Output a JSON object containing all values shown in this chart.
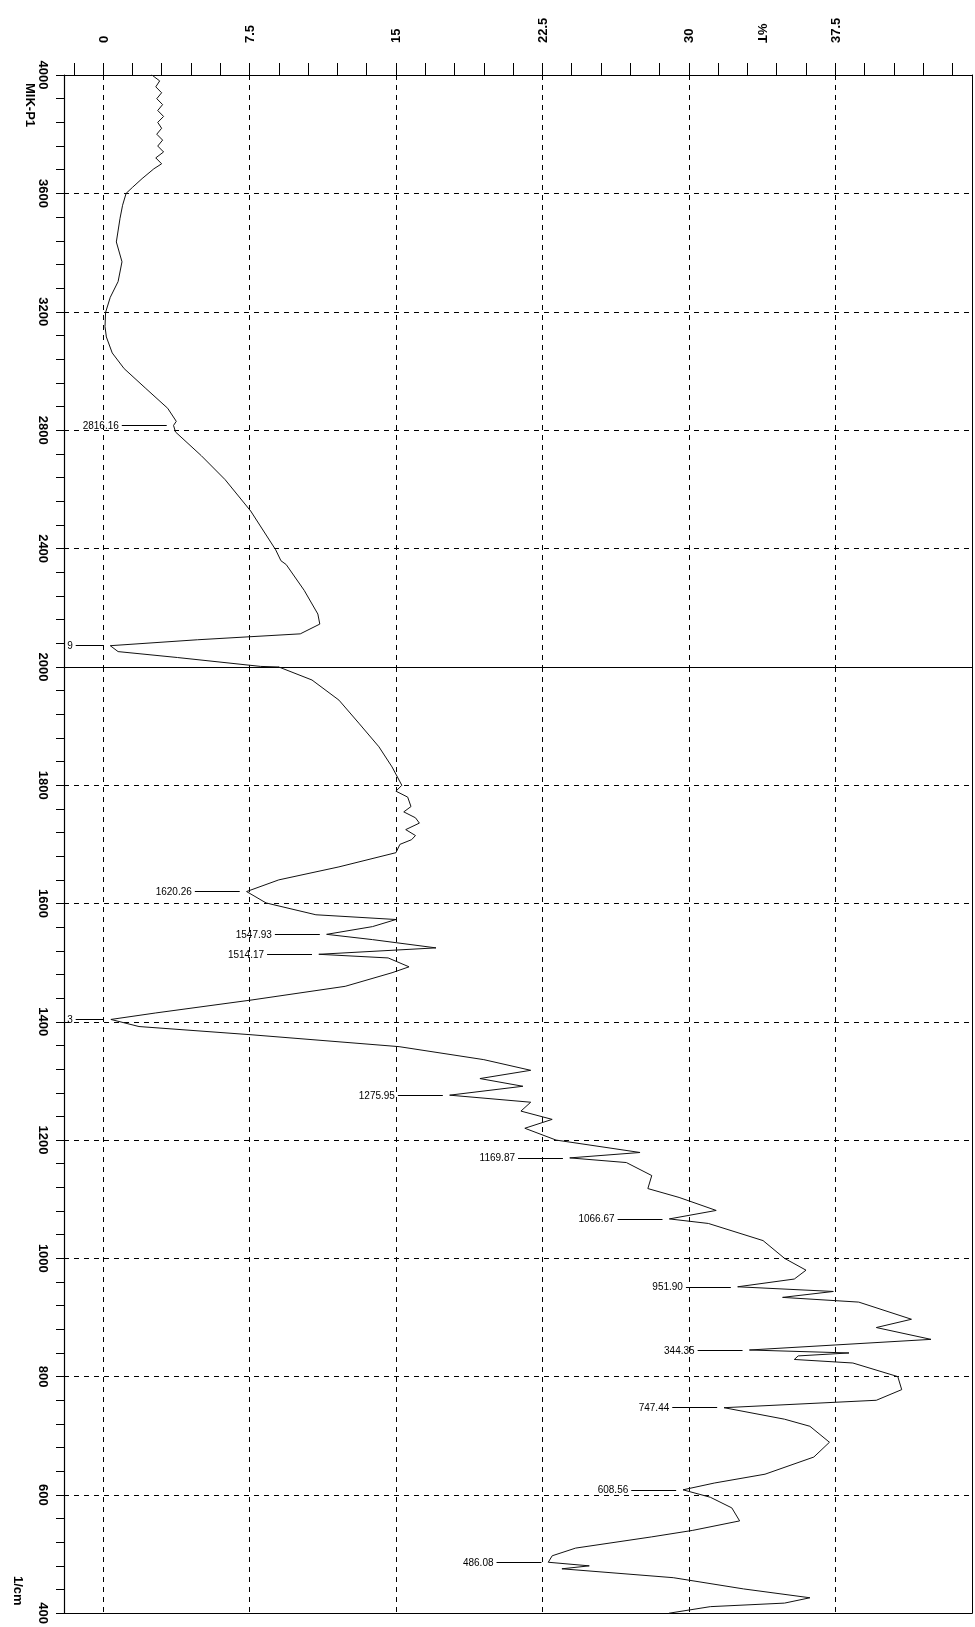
{
  "chart_data": [
    {
      "type": "line",
      "title": "MIK-P1",
      "color": "#111111",
      "grid": true,
      "marker": "none",
      "line_style": "solid",
      "values": [
        4000,
        3980,
        3960,
        3940,
        3920,
        3900,
        3880,
        3860,
        3840,
        3820,
        3800,
        3780,
        3760,
        3740,
        3720,
        3700,
        3683,
        3650,
        3620,
        3600,
        3560,
        3516,
        3436,
        3369,
        3302,
        3249,
        3198,
        3150,
        3115,
        3061,
        3008,
        2941,
        2874,
        2830,
        2816.16,
        2794,
        2714,
        2633,
        2527,
        2396,
        2359,
        2346,
        2259,
        2179,
        2145,
        2112,
        2092,
        2072,
        2052,
        2032,
        2002,
        2000
      ],
      "x": [
        2.5,
        2.9,
        2.7,
        3.0,
        2.75,
        3.05,
        2.8,
        3.1,
        2.8,
        3.0,
        2.75,
        3.05,
        2.8,
        3.1,
        2.7,
        3.0,
        2.6,
        2.0,
        1.5,
        1.18,
        1.0,
        0.87,
        0.68,
        0.97,
        0.77,
        0.37,
        0.13,
        0.1,
        0.17,
        0.47,
        1.08,
        2.19,
        3.31,
        3.75,
        3.61,
        3.71,
        5.03,
        6.25,
        7.56,
        8.84,
        9.11,
        9.38,
        10.3,
        11.0,
        11.1,
        10.1,
        4.83,
        0.37,
        0.77,
        3.81,
        8.07,
        9.0
      ],
      "ylim": [
        2000,
        4000
      ],
      "xlim": [
        -2,
        44.5
      ],
      "yticks": [
        4000,
        {
          "value": 3920,
          "label": null
        },
        {
          "value": 3840,
          "label": null
        },
        {
          "value": 3760,
          "label": null
        },
        {
          "value": 3680,
          "label": null
        },
        3600,
        {
          "value": 3520,
          "label": null
        },
        {
          "value": 3440,
          "label": null
        },
        {
          "value": 3360,
          "label": null
        },
        {
          "value": 3280,
          "label": null
        },
        3200,
        {
          "value": 3120,
          "label": null
        },
        {
          "value": 3040,
          "label": null
        },
        {
          "value": 2960,
          "label": null
        },
        {
          "value": 2880,
          "label": null
        },
        2800,
        {
          "value": 2720,
          "label": null
        },
        {
          "value": 2640,
          "label": null
        },
        {
          "value": 2560,
          "label": null
        },
        {
          "value": 2480,
          "label": null
        },
        2400,
        {
          "value": 2320,
          "label": null
        },
        {
          "value": 2240,
          "label": null
        },
        {
          "value": 2160,
          "label": null
        },
        {
          "value": 2080,
          "label": null
        },
        2000
      ],
      "xticks": [
        {
          "value": -1.5,
          "label": null
        },
        0,
        {
          "value": 1.5,
          "label": null
        },
        {
          "value": 3,
          "label": null
        },
        {
          "value": 4.5,
          "label": null
        },
        {
          "value": 6,
          "label": null
        },
        7.5,
        {
          "value": 9,
          "label": null
        },
        {
          "value": 10.5,
          "label": null
        },
        {
          "value": 12,
          "label": null
        },
        {
          "value": 13.5,
          "label": null
        },
        15,
        {
          "value": 16.5,
          "label": null
        },
        {
          "value": 18,
          "label": null
        },
        {
          "value": 19.5,
          "label": null
        },
        {
          "value": 21,
          "label": null
        },
        22.5,
        {
          "value": 24,
          "label": null
        },
        {
          "value": 25.5,
          "label": null
        },
        {
          "value": 27,
          "label": null
        },
        {
          "value": 28.5,
          "label": null
        },
        30,
        {
          "value": 31.5,
          "label": null
        },
        {
          "value": 33,
          "label": null
        },
        {
          "value": 34.5,
          "label": null
        },
        {
          "value": 36,
          "label": null
        },
        37.5,
        {
          "value": 39,
          "label": null
        },
        {
          "value": 40.5,
          "label": null
        },
        {
          "value": 42,
          "label": null
        },
        {
          "value": 43.5,
          "label": null
        }
      ],
      "annotations": [
        "%T",
        {
          "text": "2816.16",
          "x": 3.61,
          "y": 2816.16
        },
        {
          "text": "9",
          "x": 0.37,
          "y": 2072
        }
      ]
    },
    {
      "type": "line",
      "ylabel": "1/cm",
      "color": "#111111",
      "grid": true,
      "marker": "none",
      "line_style": "solid",
      "tick_labels": "y",
      "values": [
        2000,
        1978,
        1944,
        1905,
        1865,
        1831,
        1800,
        1790,
        1780,
        1764,
        1755,
        1745,
        1736,
        1725,
        1715,
        1708,
        1700,
        1686,
        1662,
        1640,
        1620.26,
        1601,
        1581,
        1573,
        1561,
        1547.93,
        1539,
        1525,
        1514.17,
        1508,
        1493,
        1483,
        1460,
        1437,
        1415,
        1404,
        1392,
        1378,
        1358,
        1336,
        1318,
        1304,
        1291,
        1275.95,
        1264,
        1249,
        1235,
        1220,
        1200,
        1179,
        1169.87,
        1162,
        1140,
        1118,
        1103,
        1081,
        1066.67,
        1059,
        1030,
        1000,
        980,
        965,
        951.9,
        944,
        934,
        926,
        897,
        883,
        863,
        845,
        840,
        835,
        829,
        823,
        800,
        778,
        760,
        747.44,
        728,
        716,
        689,
        664,
        635,
        620,
        608.56,
        596,
        578,
        556,
        540,
        529,
        510,
        497,
        486.08,
        480,
        475,
        460,
        441,
        426,
        417,
        411,
        400
      ],
      "x": [
        9.0,
        10.7,
        12.08,
        13.1,
        14.13,
        14.8,
        15.3,
        15.0,
        15.6,
        15.77,
        15.4,
        16.0,
        16.2,
        15.5,
        16.0,
        15.8,
        15.2,
        15.0,
        12.08,
        9.0,
        7.35,
        8.35,
        10.9,
        15.0,
        13.8,
        11.45,
        13.8,
        17.05,
        11.05,
        14.6,
        15.67,
        14.8,
        12.4,
        7.63,
        2.7,
        0.4,
        1.84,
        7.63,
        15.16,
        19.5,
        21.9,
        19.3,
        21.5,
        17.75,
        21.9,
        21.4,
        23.0,
        21.6,
        23.2,
        27.5,
        23.9,
        26.8,
        28.1,
        27.9,
        29.5,
        31.4,
        29.0,
        31.0,
        33.8,
        34.9,
        36.0,
        35.4,
        32.5,
        37.4,
        34.8,
        38.7,
        41.4,
        39.6,
        42.4,
        33.1,
        38.2,
        35.6,
        35.4,
        38.4,
        40.7,
        40.9,
        39.6,
        31.8,
        34.9,
        36.2,
        37.2,
        36.4,
        33.9,
        31.3,
        29.7,
        31.1,
        32.2,
        32.6,
        30.2,
        28.1,
        24.2,
        23.0,
        22.8,
        24.9,
        23.5,
        29.2,
        32.8,
        36.2,
        34.9,
        31.1,
        29.0
      ],
      "ylim": [
        400,
        2000
      ],
      "xlim": [
        -2,
        44.5
      ],
      "yticks": [
        {
          "value": 2000,
          "label": null
        },
        {
          "value": 1960,
          "label": null
        },
        {
          "value": 1920,
          "label": null
        },
        {
          "value": 1880,
          "label": null
        },
        {
          "value": 1840,
          "label": null
        },
        1800,
        {
          "value": 1760,
          "label": null
        },
        {
          "value": 1720,
          "label": null
        },
        {
          "value": 1680,
          "label": null
        },
        {
          "value": 1640,
          "label": null
        },
        1600,
        {
          "value": 1560,
          "label": null
        },
        {
          "value": 1520,
          "label": null
        },
        {
          "value": 1480,
          "label": null
        },
        {
          "value": 1440,
          "label": null
        },
        1400,
        {
          "value": 1360,
          "label": null
        },
        {
          "value": 1320,
          "label": null
        },
        {
          "value": 1280,
          "label": null
        },
        {
          "value": 1240,
          "label": null
        },
        1200,
        {
          "value": 1160,
          "label": null
        },
        {
          "value": 1120,
          "label": null
        },
        {
          "value": 1080,
          "label": null
        },
        {
          "value": 1040,
          "label": null
        },
        1000,
        {
          "value": 960,
          "label": null
        },
        {
          "value": 920,
          "label": null
        },
        {
          "value": 880,
          "label": null
        },
        {
          "value": 840,
          "label": null
        },
        800,
        {
          "value": 760,
          "label": null
        },
        {
          "value": 720,
          "label": null
        },
        {
          "value": 680,
          "label": null
        },
        {
          "value": 640,
          "label": null
        },
        600,
        {
          "value": 560,
          "label": null
        },
        {
          "value": 520,
          "label": null
        },
        {
          "value": 480,
          "label": null
        },
        {
          "value": 440,
          "label": null
        },
        400
      ],
      "xticks": [
        0,
        7.5,
        15,
        22.5,
        30,
        37.5
      ],
      "annotations": [
        {
          "text": "1620.26",
          "x": 7.35,
          "y": 1620.26
        },
        {
          "text": "1547.93",
          "x": 11.45,
          "y": 1547.93
        },
        {
          "text": "1514.17",
          "x": 11.05,
          "y": 1514.17
        },
        {
          "text": "3",
          "x": 0.4,
          "y": 1404
        },
        {
          "text": "1275.95",
          "x": 17.75,
          "y": 1275.95
        },
        {
          "text": "1169.87",
          "x": 23.9,
          "y": 1169.87
        },
        {
          "text": "1066.67",
          "x": 29.0,
          "y": 1066.67
        },
        {
          "text": "951.90",
          "x": 32.5,
          "y": 951.9
        },
        {
          "text": "344.35",
          "x": 33.1,
          "y": 845
        },
        {
          "text": "747.44",
          "x": 31.8,
          "y": 747.44
        },
        {
          "text": "608.56",
          "x": 29.7,
          "y": 608.56
        },
        {
          "text": "486.08",
          "x": 22.8,
          "y": 486.08
        }
      ]
    }
  ]
}
